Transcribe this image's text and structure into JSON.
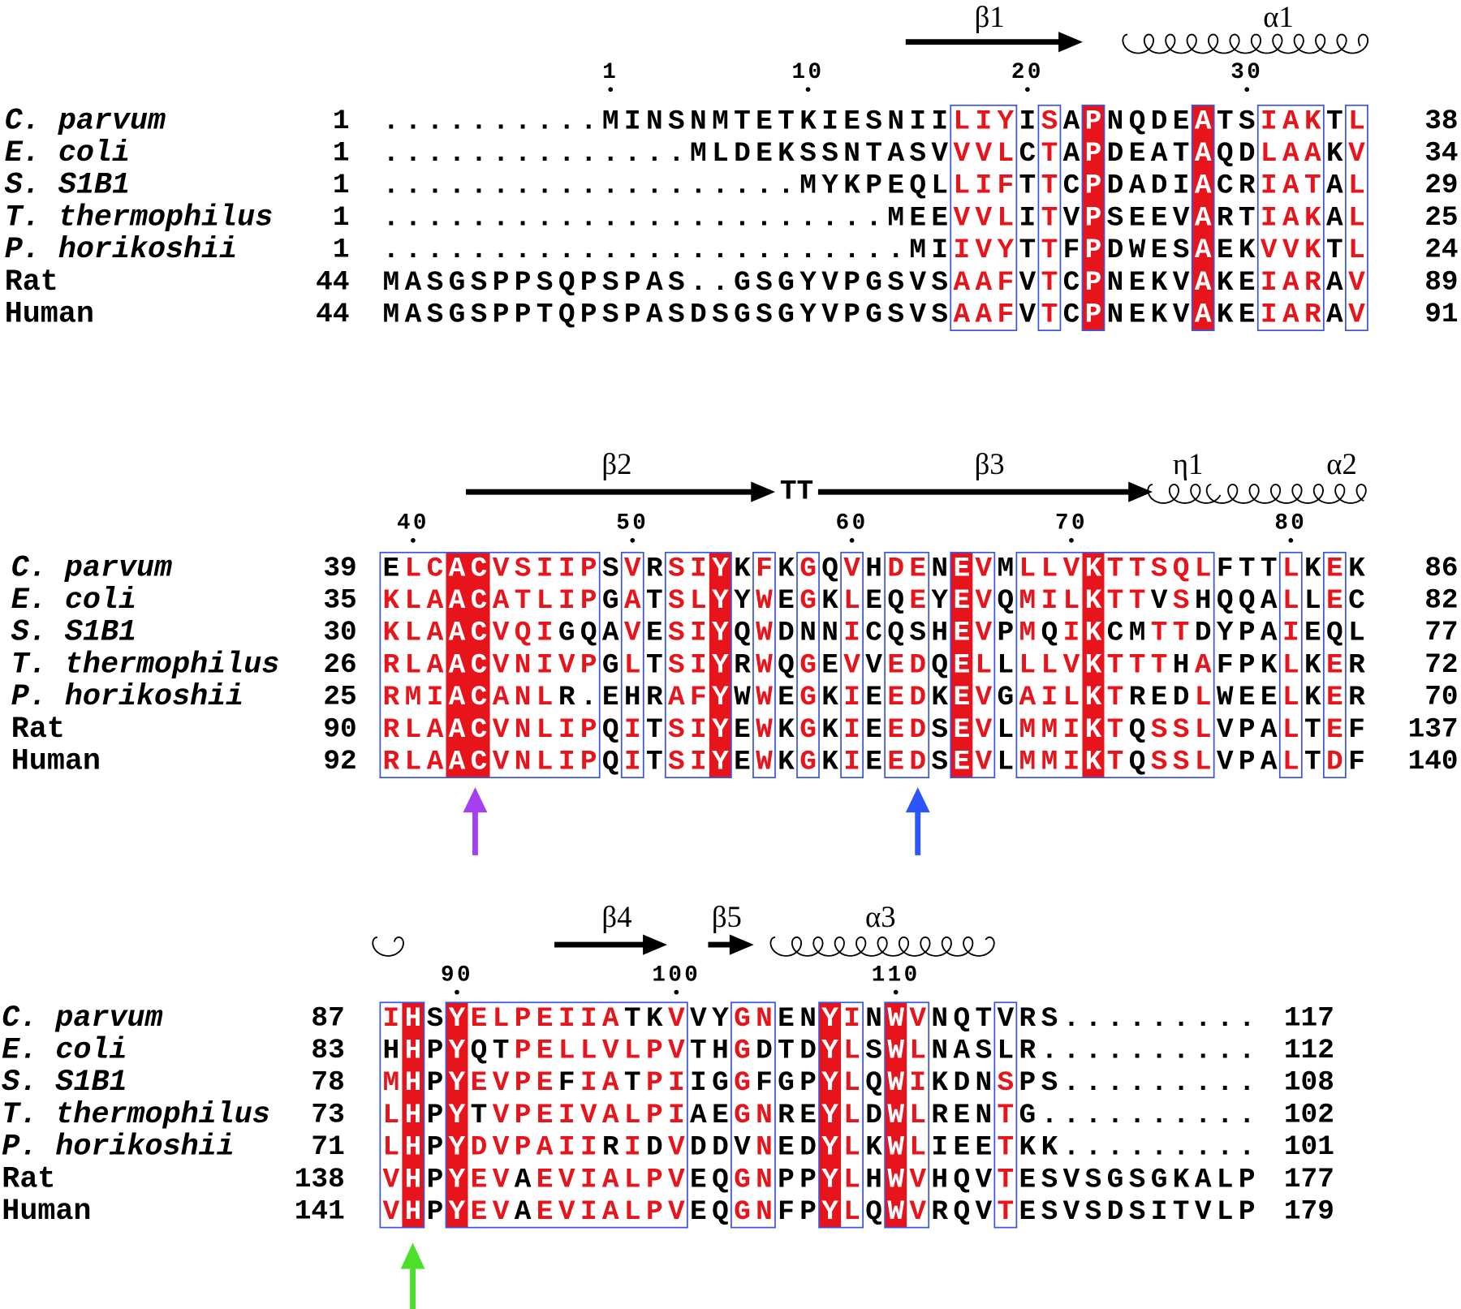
{
  "blocks": [
    {
      "structure": [
        {
          "kind": "strand",
          "label": "β1"
        },
        {
          "kind": "helix",
          "label": "α1"
        }
      ],
      "ruler": [
        1,
        10,
        20,
        30
      ],
      "rows": [
        {
          "name": "C. parvum",
          "italic": true,
          "start": 1,
          "sequence": "..........MINSNMTETKIESNIILIYISAPNQDEATSIAKTL",
          "end": 38,
          "colors": "kkkkkkkkkkkkkkkkkkkkkkkkkkrrrkrkwkkkkwkkrrrkr"
        },
        {
          "name": "E. coli",
          "italic": true,
          "start": 1,
          "sequence": "..............MLDEKSSNTASVVVLCTAPDEATAQDLAAKV",
          "end": 34,
          "colors": "kkkkkkkkkkkkkkkkkkkkkkkkkkrrrkrkwkkkkwkkrrrkr"
        },
        {
          "name": "S. S1B1",
          "italic": true,
          "start": 1,
          "sequence": "...................MYKPEQLLIFTTCPDADIACRIATAL",
          "end": 29,
          "colors": "kkkkkkkkkkkkkkkkkkkkkkkkkkrrrkrkwkkkkwkkrrrkr"
        },
        {
          "name": "T. thermophilus",
          "italic": true,
          "start": 1,
          "sequence": ".......................MEEVVLITVPSEEVARTIAKAL",
          "end": 25,
          "colors": "kkkkkkkkkkkkkkkkkkkkkkkkkkrrrkrkwkkkkwkkrrrkr"
        },
        {
          "name": "P. horikoshii",
          "italic": true,
          "start": 1,
          "sequence": "........................MIIVYTTFPDWESAEKVVKTL",
          "end": 24,
          "colors": "kkkkkkkkkkkkkkkkkkkkkkkkkkrrrkrkwkkkkwkkrrrkr"
        },
        {
          "name": "Rat",
          "italic": false,
          "start": 44,
          "sequence": "MASGSPPSQPSPAS..GSGYVPGSVSAAFVTCPNEKVAKEIARAV",
          "end": 89,
          "colors": "kkkkkkkkkkkkkkkkkkkkkkkkkkrrrkrkwkkkkwkkrrrkr"
        },
        {
          "name": "Human",
          "italic": false,
          "start": 44,
          "sequence": "MASGSPPTQPSPASDSGSGYVPGSVSAAFVTCPNEKVAKEIARAV",
          "end": 91,
          "colors": "kkkkkkkkkkkkkkkkkkkkkkkkkkrrrkrkwkkkkwkkrrrkr"
        }
      ]
    },
    {
      "structure": [
        {
          "kind": "strand",
          "label": "β2"
        },
        {
          "kind": "turn",
          "label": "TT"
        },
        {
          "kind": "strand",
          "label": "β3"
        },
        {
          "kind": "helix",
          "label": "η1"
        },
        {
          "kind": "helix",
          "label": "α2"
        }
      ],
      "ruler": [
        40,
        50,
        60,
        70,
        80
      ],
      "rows": [
        {
          "name": "C. parvum",
          "italic": true,
          "start": 39,
          "sequence": "ELCACVSIIPSVRSIYKFKGQVHDENEVMLLVKTTSQLFTTLKEK",
          "end": 86,
          "colors": "krrwwrrrrrkrkrrwkrkrkrkrrkwrkrrrwrrrrrkkkrkrk"
        },
        {
          "name": "E. coli",
          "italic": true,
          "start": 35,
          "sequence": "KLAACATLIPGATSLYYWEGKLEQEYEVQMILKTTVSHQQALLEC",
          "end": 82,
          "colors": "rrrwwrrrrrkrkrrwkrkrkrkkrkwrkrrrwrrkrkkkkrkrk"
        },
        {
          "name": "S. S1B1",
          "italic": true,
          "start": 30,
          "sequence": "KLAACVQIGQAVESIYQWDNNICQSHEVPMQIKCMTTDYPAIEQL",
          "end": 77,
          "colors": "rrrwwrrrkkkrkrrwkrkkkrkkkkwrkrkrwkkrrkkkkrkkk"
        },
        {
          "name": "T. thermophilus",
          "italic": true,
          "start": 26,
          "sequence": "RLAACVNIVPGLTSIYRWQGEVVEDQELLLLVKTTTHAFPKLKER",
          "end": 72,
          "colors": "rrrwwrrrrrkrkrrwkrkrkrkrrkwrkrrrwrrrkrkkkrkrk"
        },
        {
          "name": "P. horikoshii",
          "italic": true,
          "start": 25,
          "sequence": "RMIACANLR.EHRAFYWWEGKIEEDKEVGAILKTREDLWEELKER",
          "end": 70,
          "colors": "rrrwwrrrkkkkkrrwkrkrkrkrrkwrkrrrwrkkkrkkkrkrk"
        },
        {
          "name": "Rat",
          "italic": false,
          "start": 90,
          "sequence": "RLAACVNLIPQITSIYEWKGKIEEDSEVLMMIKTQSSLVPALTEF",
          "end": 137,
          "colors": "rrrwwrrrrrkrkrrwkrkrkrkrrkwrkrrrwrkrrrkkkrkrk"
        },
        {
          "name": "Human",
          "italic": false,
          "start": 92,
          "sequence": "RLAACVNLIPQITSIYEWKGKIEEDSEVLMMIKTQSSLVPALTDF",
          "end": 140,
          "colors": "rrrwwrrrrrkrkrrwkrkrkrkrrkwrkrrrwrkrrrkkkrkrk"
        }
      ]
    },
    {
      "structure": [
        {
          "kind": "helix"
        },
        {
          "kind": "strand",
          "label": "β4"
        },
        {
          "kind": "strand",
          "label": "β5"
        },
        {
          "kind": "helix",
          "label": "α3"
        }
      ],
      "ruler": [
        90,
        100,
        110
      ],
      "rows": [
        {
          "name": "C. parvum",
          "italic": true,
          "start": 87,
          "sequence": "IHSYELPEIIATKVVYGNENYINWVNQTVRS.........",
          "end": 117,
          "colors": "rwkwrrrrrrrkkrkkrrkkwrkwrkkkkkkkkkkkkkkk"
        },
        {
          "name": "E. coli",
          "italic": true,
          "start": 83,
          "sequence": "HHPYQTPELLVLPVTHGDTDYLSWLNASLR..........",
          "end": 112,
          "colors": "kwkwkkrrrrrrrrkkrkkkwrkwrkkkkkkkkkkkkkkk"
        },
        {
          "name": "S. S1B1",
          "italic": true,
          "start": 78,
          "sequence": "MHPYEVPEFIATPIIGGFGPYLQWIKDNSPS.........",
          "end": 108,
          "colors": "rwkwrrrrkrrkrrkkrkkkwrkwrkkkrkkkkkkkkkkk"
        },
        {
          "name": "T. thermophilus",
          "italic": true,
          "start": 73,
          "sequence": "LHPYTVPEIVALPIAEGNREYLDWLRENTG..........",
          "end": 102,
          "colors": "rwkwkrrrrrrrrrkkrrkkwrkwrkkkrkkkkkkkkkkk"
        },
        {
          "name": "P. horikoshii",
          "italic": true,
          "start": 71,
          "sequence": "LHPYDVPAIIRIDVDDVNEDYLKWLIEETKK.........",
          "end": 101,
          "colors": "rwkwrrrrrrkrkrkkkrkkwrkwrkkkrkkkkkkkkkkk"
        },
        {
          "name": "Rat",
          "italic": false,
          "start": 138,
          "sequence": "VHPYEVAEVIALPVEQGNPPYLHWVHQVTESVSGSGKALP",
          "end": 177,
          "colors": "rwkwrrkrrrrrrrkkrrkkwrkwrkkkrkkkkkkkkkkk"
        },
        {
          "name": "Human",
          "italic": false,
          "start": 141,
          "sequence": "VHPYEVAEVIALPVEQGNFPYLQWVRQVTESVSDSITVLP",
          "end": 179,
          "colors": "rwkwrrkrrrrrrrkkrrkkwrkwrkkkrkkkkkkkkkkk"
        }
      ]
    }
  ]
}
